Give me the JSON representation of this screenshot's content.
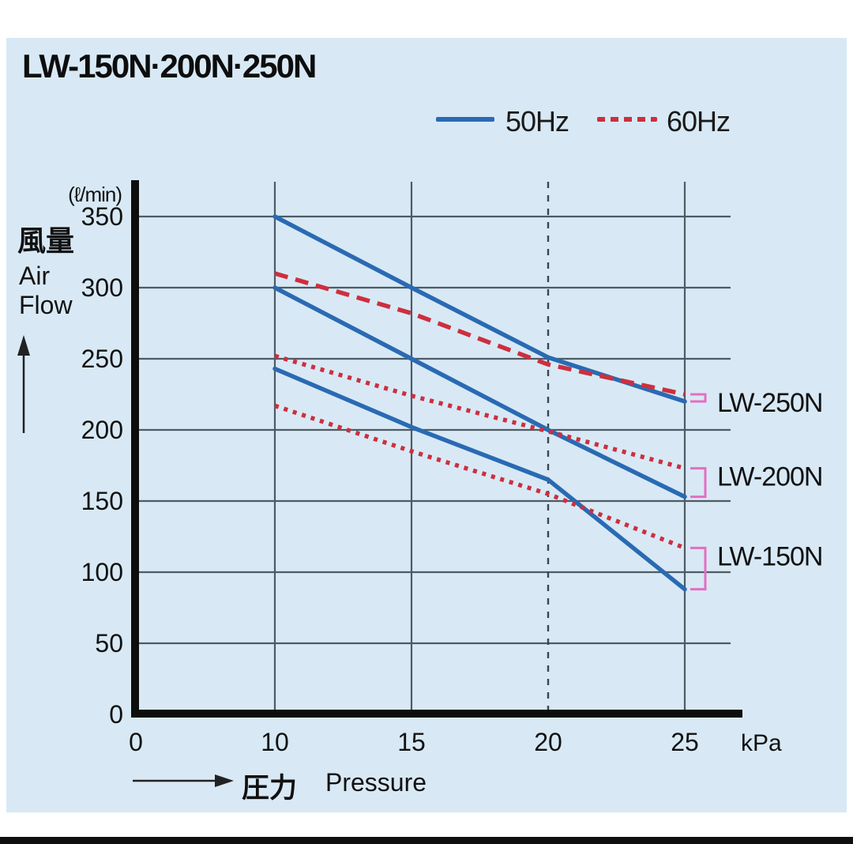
{
  "title": "LW-150N·200N·250N",
  "legend": {
    "items": [
      {
        "label": "50Hz",
        "color": "#2a6ab3",
        "style": "solid"
      },
      {
        "label": "60Hz",
        "color": "#cd2f3e",
        "style": "dashed"
      }
    ]
  },
  "y_axis": {
    "unit": "(ℓ/min)",
    "title_jp": "風量",
    "title_en_line1": "Air",
    "title_en_line2": "Flow",
    "ticks": [
      0,
      50,
      100,
      150,
      200,
      250,
      300,
      350
    ]
  },
  "x_axis": {
    "unit": "kPa",
    "title_jp": "圧力",
    "title_en": "Pressure",
    "ticks": [
      0,
      10,
      15,
      20,
      25
    ]
  },
  "chart_data": {
    "type": "line",
    "title": "LW-150N·200N·250N",
    "xlabel": "圧力 Pressure (kPa)",
    "ylabel": "風量 Air Flow (ℓ/min)",
    "xlim": [
      0,
      25
    ],
    "ylim": [
      0,
      350
    ],
    "grid": true,
    "x": [
      10,
      15,
      20,
      25
    ],
    "series": [
      {
        "name": "LW-250N 50Hz",
        "model": "LW-250N",
        "frequency": "50Hz",
        "color": "#2a6ab3",
        "line_style": "solid",
        "values": [
          350,
          300,
          251,
          220
        ]
      },
      {
        "name": "LW-250N 60Hz",
        "model": "LW-250N",
        "frequency": "60Hz",
        "color": "#cd2f3e",
        "line_style": "long-dash",
        "values": [
          310,
          282,
          246,
          225
        ]
      },
      {
        "name": "LW-200N 50Hz",
        "model": "LW-200N",
        "frequency": "50Hz",
        "color": "#2a6ab3",
        "line_style": "solid",
        "values": [
          300,
          250,
          200,
          153
        ]
      },
      {
        "name": "LW-200N 60Hz",
        "model": "LW-200N",
        "frequency": "60Hz",
        "color": "#cd2f3e",
        "line_style": "dot",
        "values": [
          252,
          224,
          199,
          173
        ]
      },
      {
        "name": "LW-150N 50Hz",
        "model": "LW-150N",
        "frequency": "50Hz",
        "color": "#2a6ab3",
        "line_style": "solid",
        "values": [
          243,
          202,
          165,
          88
        ]
      },
      {
        "name": "LW-150N 60Hz",
        "model": "LW-150N",
        "frequency": "60Hz",
        "color": "#cd2f3e",
        "line_style": "dot",
        "values": [
          217,
          185,
          155,
          117
        ]
      }
    ],
    "y_gridlines": [
      50,
      100,
      150,
      200,
      250,
      300,
      350
    ],
    "solid_x_gridlines": [
      10,
      15,
      25
    ],
    "dashed_x_gridline": 20,
    "annotations": [
      {
        "model": "LW-250N"
      },
      {
        "model": "LW-200N"
      },
      {
        "model": "LW-150N"
      }
    ],
    "annotation_bracket_color": "#e46ec2",
    "legend_position": "top-right"
  },
  "colors": {
    "panel_bg": "#d8e9f5",
    "gridline": "#4d5b64",
    "axis": "#0d0d0d",
    "text": "#111111",
    "blue_line": "#2a6ab3",
    "red_line": "#cd2f3e",
    "bracket_pink": "#e46ec2"
  }
}
